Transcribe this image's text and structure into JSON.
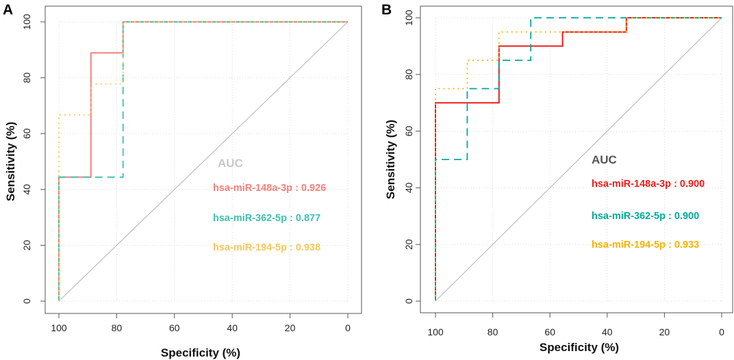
{
  "chart_data": [
    {
      "panel": "A",
      "type": "line",
      "subtype": "roc",
      "xlabel": "Specificity (%)",
      "ylabel": "Sensitivity (%)",
      "xlim": [
        100,
        0
      ],
      "ylim": [
        0,
        100
      ],
      "x_ticks": [
        100,
        80,
        60,
        40,
        20,
        0
      ],
      "y_ticks": [
        0,
        20,
        40,
        60,
        80,
        100
      ],
      "grid": true,
      "legend_title": "AUC",
      "legend_title_color": "#c8c8c8",
      "legend_placement": "center-right",
      "diagonal": {
        "x": [
          100,
          0
        ],
        "y": [
          0,
          100
        ],
        "color": "#bdbdbd"
      },
      "series": [
        {
          "name": "hsa-miR-148a-3p",
          "auc": "0.926",
          "label": "hsa-miR-148a-3p : 0.926",
          "color": "#f4817b",
          "dash": "solid",
          "x": [
            100,
            100,
            88.9,
            88.9,
            77.8,
            77.8,
            0
          ],
          "y": [
            0,
            44.4,
            44.4,
            88.9,
            88.9,
            100,
            100
          ]
        },
        {
          "name": "hsa-miR-362-5p",
          "auc": "0.877",
          "label": "hsa-miR-362-5p : 0.877",
          "color": "#3fc0b0",
          "dash": "dashed",
          "x": [
            100,
            100,
            77.8,
            77.8,
            0
          ],
          "y": [
            0,
            44.4,
            44.4,
            100,
            100
          ]
        },
        {
          "name": "hsa-miR-194-5p",
          "auc": "0.938",
          "label": "hsa-miR-194-5p : 0.938",
          "color": "#f5c85a",
          "dash": "dotted",
          "x": [
            100,
            100,
            88.9,
            88.9,
            77.8,
            77.8,
            0
          ],
          "y": [
            0,
            66.7,
            66.7,
            77.8,
            77.8,
            100,
            100
          ]
        }
      ]
    },
    {
      "panel": "B",
      "type": "line",
      "subtype": "roc",
      "xlabel": "Specificity (%)",
      "ylabel": "Sensitivity (%)",
      "xlim": [
        100,
        0
      ],
      "ylim": [
        0,
        100
      ],
      "x_ticks": [
        100,
        80,
        60,
        40,
        20,
        0
      ],
      "y_ticks": [
        0,
        20,
        40,
        60,
        80,
        100
      ],
      "grid": true,
      "legend_title": "AUC",
      "legend_title_color": "#555555",
      "legend_placement": "center-right",
      "diagonal": {
        "x": [
          100,
          0
        ],
        "y": [
          0,
          100
        ],
        "color": "#bdbdbd"
      },
      "series": [
        {
          "name": "hsa-miR-148a-3p",
          "auc": "0.900",
          "label": "hsa-miR-148a-3p : 0.900",
          "color": "#ee1c1c",
          "dash": "solid",
          "x": [
            100,
            100,
            77.8,
            77.8,
            55.6,
            55.6,
            33.3,
            33.3,
            0
          ],
          "y": [
            0,
            70,
            70,
            90,
            90,
            95,
            95,
            100,
            100
          ]
        },
        {
          "name": "hsa-miR-362-5p",
          "auc": "0.900",
          "label": "hsa-miR-362-5p : 0.900",
          "color": "#00a99d",
          "dash": "dashed",
          "x": [
            100,
            100,
            88.9,
            88.9,
            77.8,
            77.8,
            66.7,
            66.7,
            0
          ],
          "y": [
            0,
            50,
            50,
            75,
            75,
            85,
            85,
            100,
            100
          ]
        },
        {
          "name": "hsa-miR-194-5p",
          "auc": "0.933",
          "label": "hsa-miR-194-5p : 0.933",
          "color": "#f5b400",
          "dash": "dotted",
          "x": [
            100,
            100,
            88.9,
            88.9,
            77.8,
            77.8,
            33.3,
            33.3,
            0
          ],
          "y": [
            0,
            75,
            75,
            85,
            85,
            95,
            95,
            100,
            100
          ]
        }
      ]
    }
  ]
}
